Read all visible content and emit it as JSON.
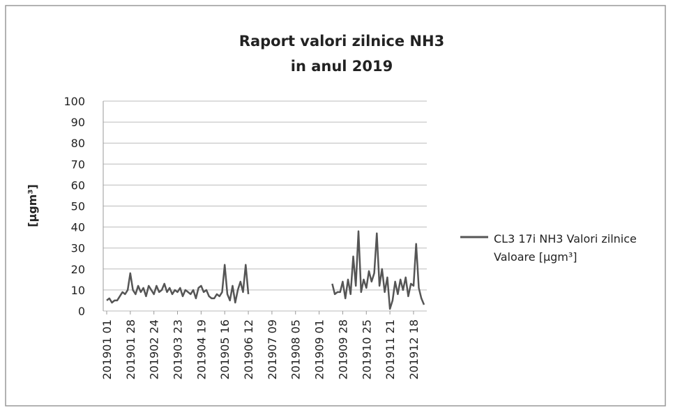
{
  "chart_data": {
    "type": "line",
    "title": [
      "Raport valori zilnice NH3",
      "in anul 2019"
    ],
    "y_label": "[µgm³]",
    "categories": [
      "201901 01",
      null,
      null,
      null,
      null,
      null,
      null,
      null,
      null,
      "201901 28",
      null,
      null,
      null,
      null,
      null,
      null,
      null,
      null,
      "201902 24",
      null,
      null,
      null,
      null,
      null,
      null,
      null,
      null,
      "201903 23",
      null,
      null,
      null,
      null,
      null,
      null,
      null,
      null,
      "201904 19",
      null,
      null,
      null,
      null,
      null,
      null,
      null,
      null,
      "201905 16",
      null,
      null,
      null,
      null,
      null,
      null,
      null,
      null,
      "201906 12",
      null,
      null,
      null,
      null,
      null,
      null,
      null,
      null,
      "201907 09",
      null,
      null,
      null,
      null,
      null,
      null,
      null,
      null,
      "201908 05",
      null,
      null,
      null,
      null,
      null,
      null,
      null,
      null,
      "201909 01",
      null,
      null,
      null,
      null,
      null,
      null,
      null,
      null,
      "201909 28",
      null,
      null,
      null,
      null,
      null,
      null,
      null,
      null,
      "201910 25",
      null,
      null,
      null,
      null,
      null,
      null,
      null,
      null,
      "201911 21",
      null,
      null,
      null,
      null,
      null,
      null,
      null,
      null,
      "201912 18",
      null,
      null,
      null,
      null
    ],
    "series": [
      {
        "name": "CL3 17i  NH3 Valori zilnice Valoare [µgm³]",
        "color": "#555555",
        "values": [
          5,
          6,
          4,
          5,
          5,
          7,
          9,
          8,
          10,
          18,
          10,
          8,
          12,
          9,
          11,
          7,
          12,
          10,
          8,
          12,
          9,
          10,
          13,
          9,
          11,
          8,
          10,
          9,
          11,
          7,
          10,
          9,
          8,
          10,
          6,
          11,
          12,
          9,
          10,
          7,
          6,
          6,
          8,
          7,
          9,
          22,
          8,
          5,
          12,
          4,
          10,
          14,
          9,
          22,
          8,
          null,
          null,
          null,
          null,
          null,
          null,
          null,
          null,
          null,
          null,
          null,
          null,
          null,
          null,
          null,
          null,
          null,
          null,
          null,
          null,
          null,
          null,
          null,
          null,
          null,
          null,
          null,
          null,
          null,
          null,
          null,
          13,
          8,
          9,
          9,
          14,
          6,
          15,
          8,
          26,
          12,
          38,
          9,
          15,
          11,
          19,
          14,
          18,
          37,
          12,
          20,
          9,
          16,
          1,
          5,
          14,
          8,
          15,
          10,
          16,
          7,
          13,
          12,
          32,
          11,
          6,
          3
        ]
      }
    ],
    "ylim": [
      0,
      100
    ],
    "yticks": [
      0,
      10,
      20,
      30,
      40,
      50,
      60,
      70,
      80,
      90,
      100
    ],
    "grid": true,
    "legend": "right"
  }
}
